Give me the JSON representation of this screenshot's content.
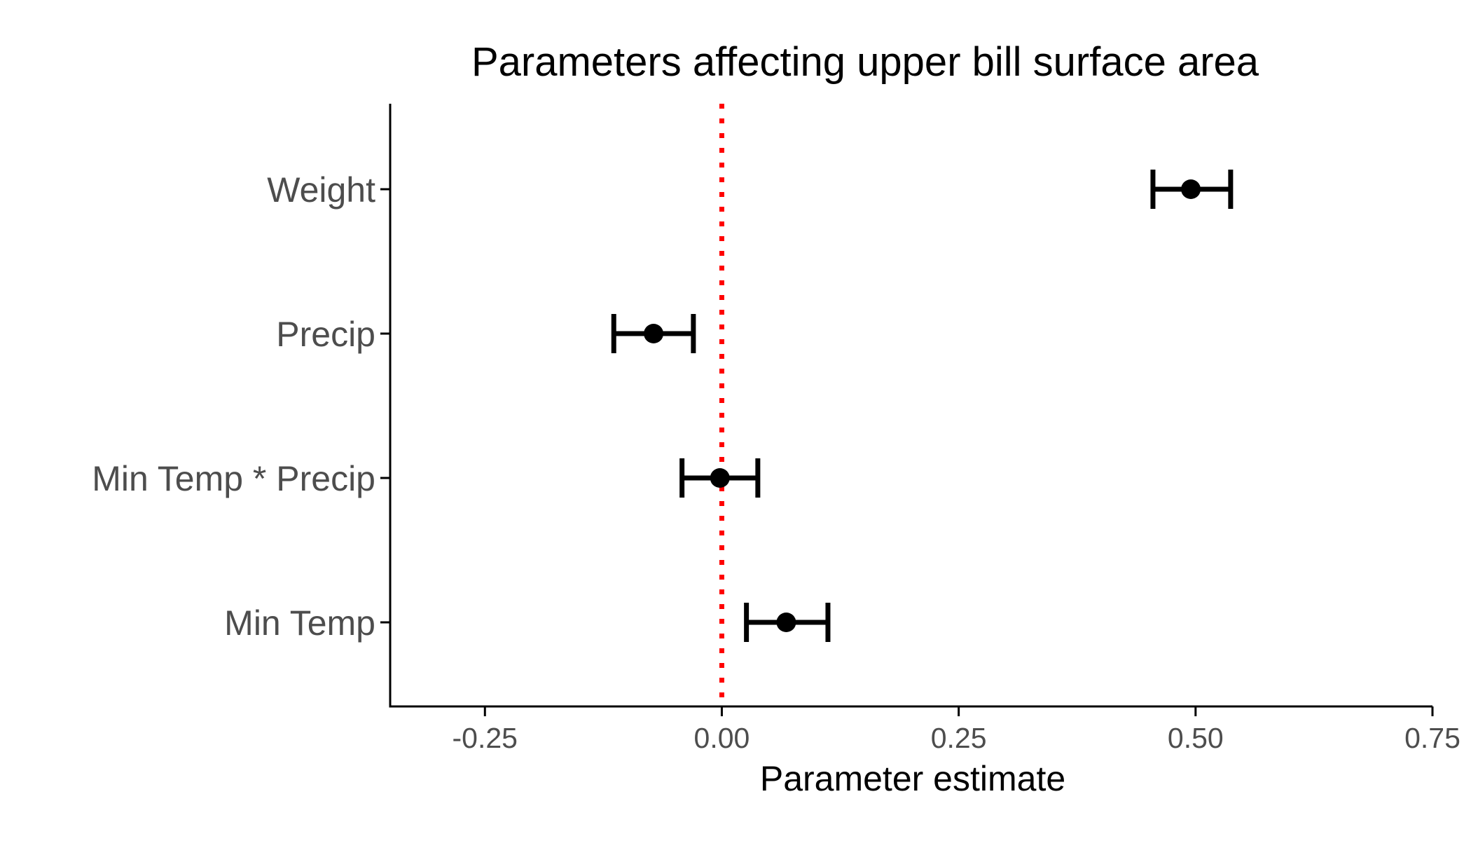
{
  "chart_data": {
    "type": "scatter",
    "title": "Parameters affecting upper bill surface area",
    "xlabel": "Parameter estimate",
    "ylabel": "",
    "xlim": [
      -0.35,
      0.75
    ],
    "x_ticks": [
      "-0.25",
      "0.00",
      "0.25",
      "0.50",
      "0.75"
    ],
    "x_tick_values": [
      -0.25,
      0,
      0.25,
      0.5,
      0.75
    ],
    "categories": [
      "Weight",
      "Precip",
      "Min Temp * Precip",
      "Min Temp"
    ],
    "points": [
      {
        "label": "Weight",
        "estimate": 0.495,
        "lower": 0.455,
        "upper": 0.537
      },
      {
        "label": "Precip",
        "estimate": -0.072,
        "lower": -0.114,
        "upper": -0.03
      },
      {
        "label": "Min Temp * Precip",
        "estimate": -0.002,
        "lower": -0.042,
        "upper": 0.038
      },
      {
        "label": "Min Temp",
        "estimate": 0.068,
        "lower": 0.026,
        "upper": 0.112
      }
    ],
    "reference_line": {
      "x": 0,
      "style": "dotted",
      "color": "#ff0000"
    },
    "point_color": "#000000",
    "grid": false,
    "legend": "none"
  }
}
